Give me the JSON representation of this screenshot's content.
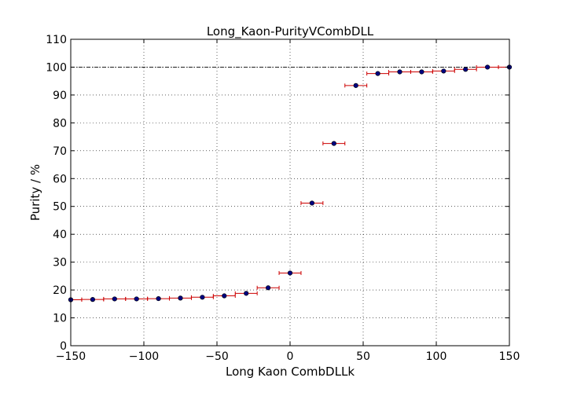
{
  "chart_data": {
    "type": "scatter",
    "title": "Long_Kaon-PurityVCombDLL",
    "xlabel": "Long Kaon CombDLLk",
    "ylabel": "Purity / %",
    "xlim": [
      -150,
      150
    ],
    "ylim": [
      0,
      110
    ],
    "x_ticks": [
      -150,
      -100,
      -50,
      0,
      50,
      100,
      150
    ],
    "y_ticks": [
      0,
      10,
      20,
      30,
      40,
      50,
      60,
      70,
      80,
      90,
      100,
      110
    ],
    "x_tick_labels": [
      "−150",
      "−100",
      "−50",
      "0",
      "50",
      "100",
      "150"
    ],
    "y_tick_labels": [
      "0",
      "10",
      "20",
      "30",
      "40",
      "50",
      "60",
      "70",
      "80",
      "90",
      "100",
      "110"
    ],
    "grid": true,
    "reference_line_y": 100,
    "x_error_halfwidth": 7.5,
    "marker_color": "#000080",
    "errorbar_color": "#cc0000",
    "points": [
      {
        "x": -150,
        "y": 16.5
      },
      {
        "x": -135,
        "y": 16.6
      },
      {
        "x": -120,
        "y": 16.8
      },
      {
        "x": -105,
        "y": 16.8
      },
      {
        "x": -90,
        "y": 16.9
      },
      {
        "x": -75,
        "y": 17.1
      },
      {
        "x": -60,
        "y": 17.4
      },
      {
        "x": -45,
        "y": 17.9
      },
      {
        "x": -30,
        "y": 18.8
      },
      {
        "x": -15,
        "y": 20.8
      },
      {
        "x": 0,
        "y": 26.1
      },
      {
        "x": 15,
        "y": 51.2
      },
      {
        "x": 30,
        "y": 72.6
      },
      {
        "x": 45,
        "y": 93.4
      },
      {
        "x": 60,
        "y": 97.7
      },
      {
        "x": 75,
        "y": 98.3
      },
      {
        "x": 90,
        "y": 98.3
      },
      {
        "x": 105,
        "y": 98.6
      },
      {
        "x": 120,
        "y": 99.2
      },
      {
        "x": 135,
        "y": 100.0
      },
      {
        "x": 150,
        "y": 100.0
      }
    ]
  }
}
